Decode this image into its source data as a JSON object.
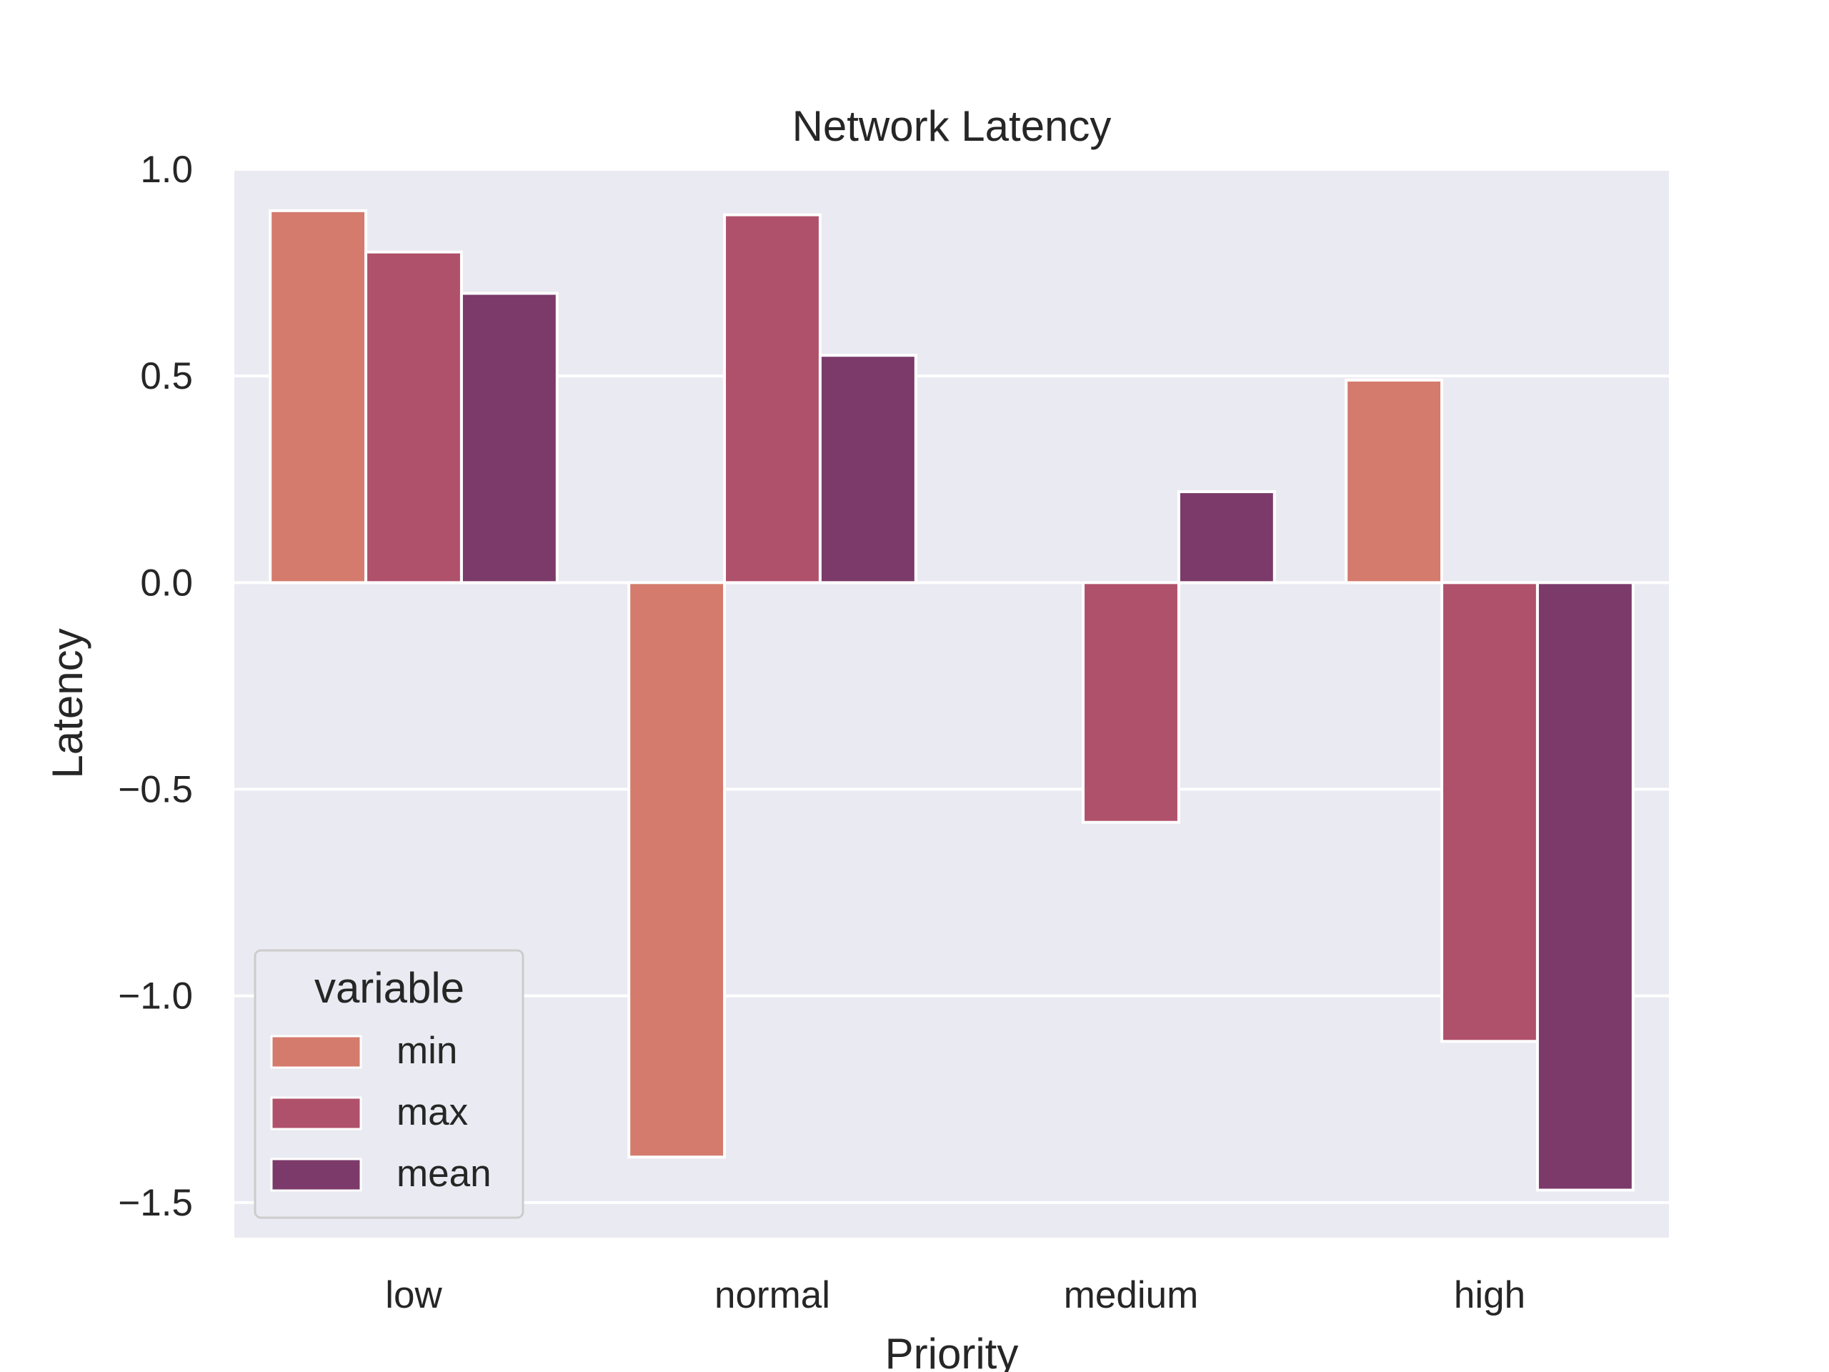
{
  "chart_data": {
    "type": "bar",
    "title": "Network Latency",
    "xlabel": "Priority",
    "ylabel": "Latency",
    "categories": [
      "low",
      "normal",
      "medium",
      "high"
    ],
    "series": [
      {
        "name": "min",
        "color": "#d47b6d",
        "values": [
          0.9,
          -1.39,
          0.0,
          0.49
        ]
      },
      {
        "name": "max",
        "color": "#b0516b",
        "values": [
          0.8,
          0.89,
          -0.58,
          -1.11
        ]
      },
      {
        "name": "mean",
        "color": "#7b3a6a",
        "values": [
          0.7,
          0.55,
          0.22,
          -1.47
        ]
      }
    ],
    "ylim": [
      -1.585,
      1.0
    ],
    "yticks": [
      1.0,
      0.5,
      0.0,
      -0.5,
      -1.0,
      -1.5
    ],
    "ytick_labels": [
      "1.0",
      "0.5",
      "0.0",
      "−0.5",
      "−1.0",
      "−1.5"
    ],
    "legend": {
      "title": "variable",
      "placement": "lower-left"
    },
    "grid": true,
    "background_color": "#eaeaf2"
  }
}
